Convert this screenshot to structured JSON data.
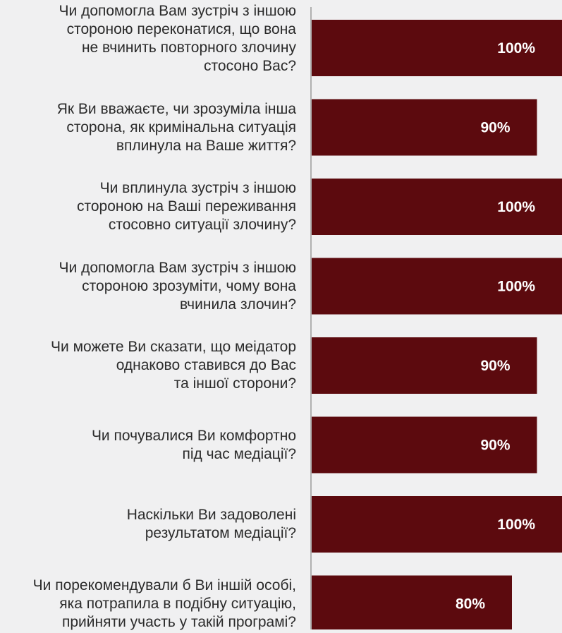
{
  "chart_data": {
    "type": "bar",
    "orientation": "horizontal",
    "categories": [
      "Чи допомогла Вам зустріч з іншою\nстороною переконатися, що вона\nне вчинить повторного злочину\nстосоно Вас?",
      "Як Ви вважаєте, чи зрозуміла інша\nсторона, як кримінальна ситуація\nвплинула на Ваше життя?",
      "Чи вплинула зустріч з іншою\nстороною на Ваші переживання\nстосовно ситуації злочину?",
      "Чи допомогла Вам зустріч з іншою\nстороною зрозуміти, чому вона\nвчинила злочин?",
      "Чи можете Ви сказати, що меідатор\nоднаково ставився до Вас\nта іншої сторони?",
      "Чи почувалися Ви комфортно\nпід час медіації?",
      "Наскільки Ви задоволені\nрезультатом медіації?",
      "Чи порекомендували б Ви іншій особі,\nяка потрапила в подібну ситуацію,\nприйняти участь у такій програмі?"
    ],
    "values": [
      100,
      90,
      100,
      100,
      90,
      90,
      100,
      80
    ],
    "value_labels": [
      "100%",
      "90%",
      "100%",
      "100%",
      "90%",
      "90%",
      "100%",
      "80%"
    ],
    "xlim": [
      0,
      100
    ],
    "bar_color": "#5c0a0e",
    "value_label_color": "#ffffff",
    "background_color": "#f0f0f1",
    "axis_color": "#b0b0b0",
    "grid": false,
    "legend": false
  }
}
